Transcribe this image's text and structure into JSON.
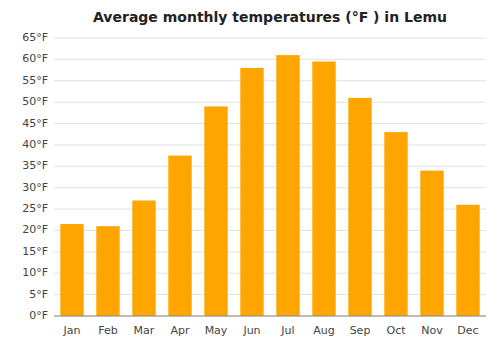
{
  "chart_data": {
    "type": "bar",
    "title": "Average monthly temperatures (°F ) in Lemu",
    "categories": [
      "Jan",
      "Feb",
      "Mar",
      "Apr",
      "May",
      "Jun",
      "Jul",
      "Aug",
      "Sep",
      "Oct",
      "Nov",
      "Dec"
    ],
    "values": [
      21.5,
      21.0,
      27.0,
      37.5,
      49.0,
      58.0,
      61.0,
      59.5,
      51.0,
      43.0,
      34.0,
      26.0
    ],
    "color": "#FFA500",
    "ylim": [
      0,
      65
    ],
    "yticks": [
      {
        "value": 0,
        "label": "0°F"
      },
      {
        "value": 5,
        "label": "5°F"
      },
      {
        "value": 10,
        "label": "10°F"
      },
      {
        "value": 15,
        "label": "15°F"
      },
      {
        "value": 20,
        "label": "20°F"
      },
      {
        "value": 25,
        "label": "25°F"
      },
      {
        "value": 30,
        "label": "30°F"
      },
      {
        "value": 35,
        "label": "35°F"
      },
      {
        "value": 40,
        "label": "40°F"
      },
      {
        "value": 45,
        "label": "45°F"
      },
      {
        "value": 50,
        "label": "50°F"
      },
      {
        "value": 55,
        "label": "55°F"
      },
      {
        "value": 60,
        "label": "60°F"
      },
      {
        "value": 65,
        "label": "65°F"
      }
    ],
    "grid": true
  }
}
